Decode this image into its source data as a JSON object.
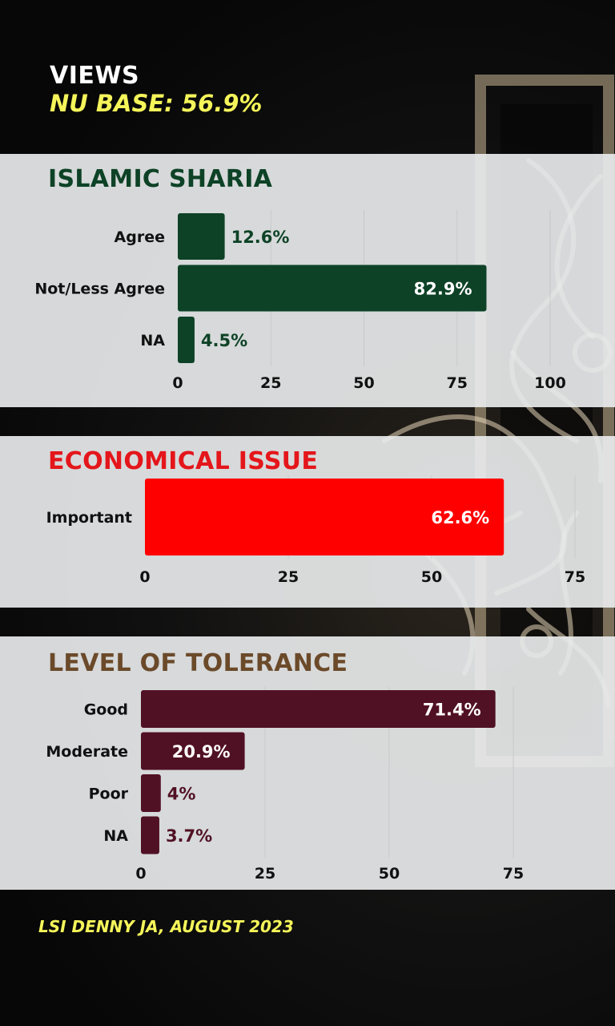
{
  "header": {
    "title": "VIEWS",
    "base": "NU BASE: 56.9%"
  },
  "footer": "LSI DENNY JA, AUGUST 2023",
  "colors": {
    "sharia": "#0d4226",
    "economic": "#ff0000",
    "economic_title": "#e4161b",
    "tolerance": "#511124",
    "tolerance_title": "#6b4a2a",
    "accent_yellow": "#f5f55a"
  },
  "chart_data": [
    {
      "type": "bar",
      "orientation": "horizontal",
      "title": "ISLAMIC SHARIA",
      "categories": [
        "Agree",
        "Not/Less Agree",
        "NA"
      ],
      "values": [
        12.6,
        82.9,
        4.5
      ],
      "labels": [
        "12.6%",
        "82.9%",
        "4.5%"
      ],
      "xlim": [
        0,
        100
      ],
      "ticks": [
        0,
        25,
        50,
        75,
        100
      ],
      "grid": true
    },
    {
      "type": "bar",
      "orientation": "horizontal",
      "title": "ECONOMICAL ISSUE",
      "categories": [
        "Important"
      ],
      "values": [
        62.6
      ],
      "labels": [
        "62.6%"
      ],
      "xlim": [
        0,
        75
      ],
      "ticks": [
        0,
        25,
        50,
        75
      ],
      "grid": true
    },
    {
      "type": "bar",
      "orientation": "horizontal",
      "title": "LEVEL OF TOLERANCE",
      "categories": [
        "Good",
        "Moderate",
        "Poor",
        "NA"
      ],
      "values": [
        71.4,
        20.9,
        4,
        3.7
      ],
      "labels": [
        "71.4%",
        "20.9%",
        "4%",
        "3.7%"
      ],
      "xlim": [
        0,
        75
      ],
      "ticks": [
        0,
        25,
        50,
        75
      ],
      "grid": true
    }
  ]
}
